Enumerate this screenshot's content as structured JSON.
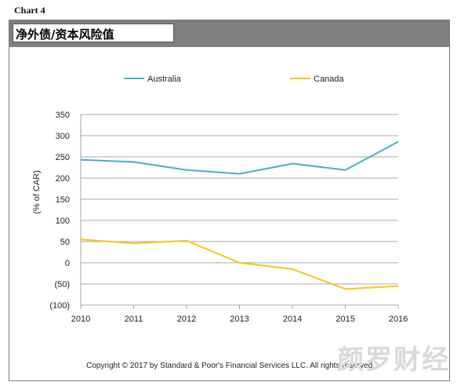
{
  "chart_label": "Chart 4",
  "title": "净外债/资本风险值",
  "copyright": "Copyright © 2017 by Standard & Poor's Financial Services LLC. All rights reserved.",
  "watermark": "颜罗财经",
  "chart_data": {
    "type": "line",
    "title": "净外债/资本风险值",
    "xlabel": "",
    "ylabel": "(% of CAR)",
    "x": [
      2010,
      2011,
      2012,
      2013,
      2014,
      2015,
      2016
    ],
    "ylim": [
      -100,
      350
    ],
    "yticks": [
      350,
      300,
      250,
      200,
      150,
      100,
      50,
      0,
      -50,
      -100
    ],
    "ytick_labels": [
      "350",
      "300",
      "250",
      "200",
      "150",
      "100",
      "50",
      "0",
      "(50)",
      "(100)"
    ],
    "grid": true,
    "legend": "top",
    "series": [
      {
        "name": "Australia",
        "color": "#4bacc6",
        "values": [
          243,
          238,
          219,
          210,
          234,
          219,
          286
        ]
      },
      {
        "name": "Canada",
        "color": "#f2c811",
        "values": [
          55,
          46,
          52,
          0,
          -15,
          -62,
          -55
        ]
      }
    ]
  }
}
